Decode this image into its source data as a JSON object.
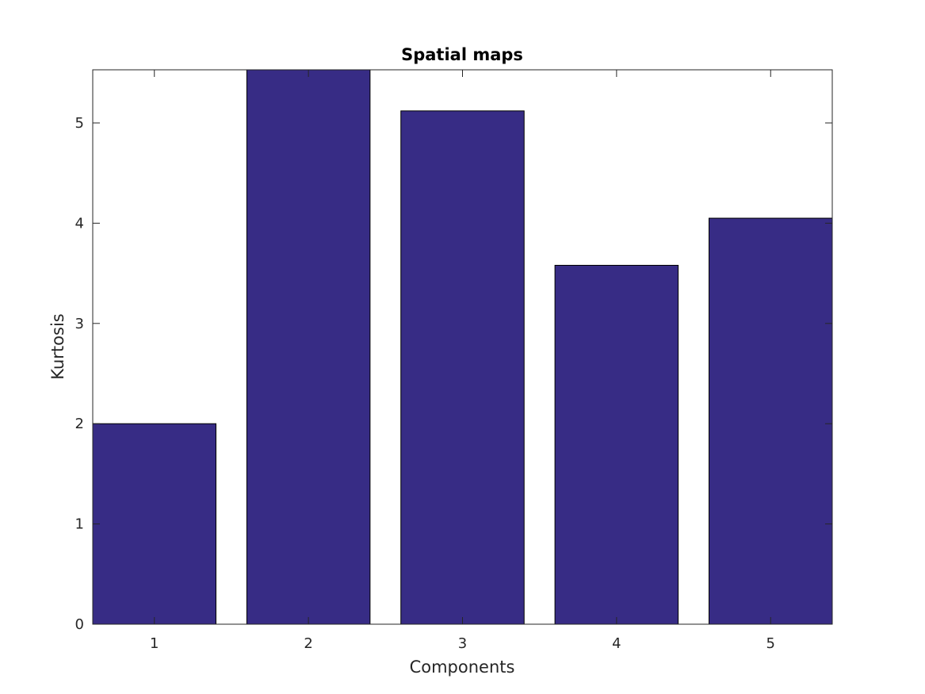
{
  "chart_data": {
    "type": "bar",
    "title": "Spatial maps",
    "xlabel": "Components",
    "ylabel": "Kurtosis",
    "categories": [
      "1",
      "2",
      "3",
      "4",
      "5"
    ],
    "values": [
      2.0,
      5.53,
      5.12,
      3.58,
      4.05
    ],
    "xlim": [
      0.6,
      5.4
    ],
    "ylim": [
      0,
      5.53
    ],
    "yticks": [
      "0",
      "1",
      "2",
      "3",
      "4",
      "5"
    ],
    "grid": false,
    "bar_color": "#372c85",
    "edge_color": "#000000"
  }
}
